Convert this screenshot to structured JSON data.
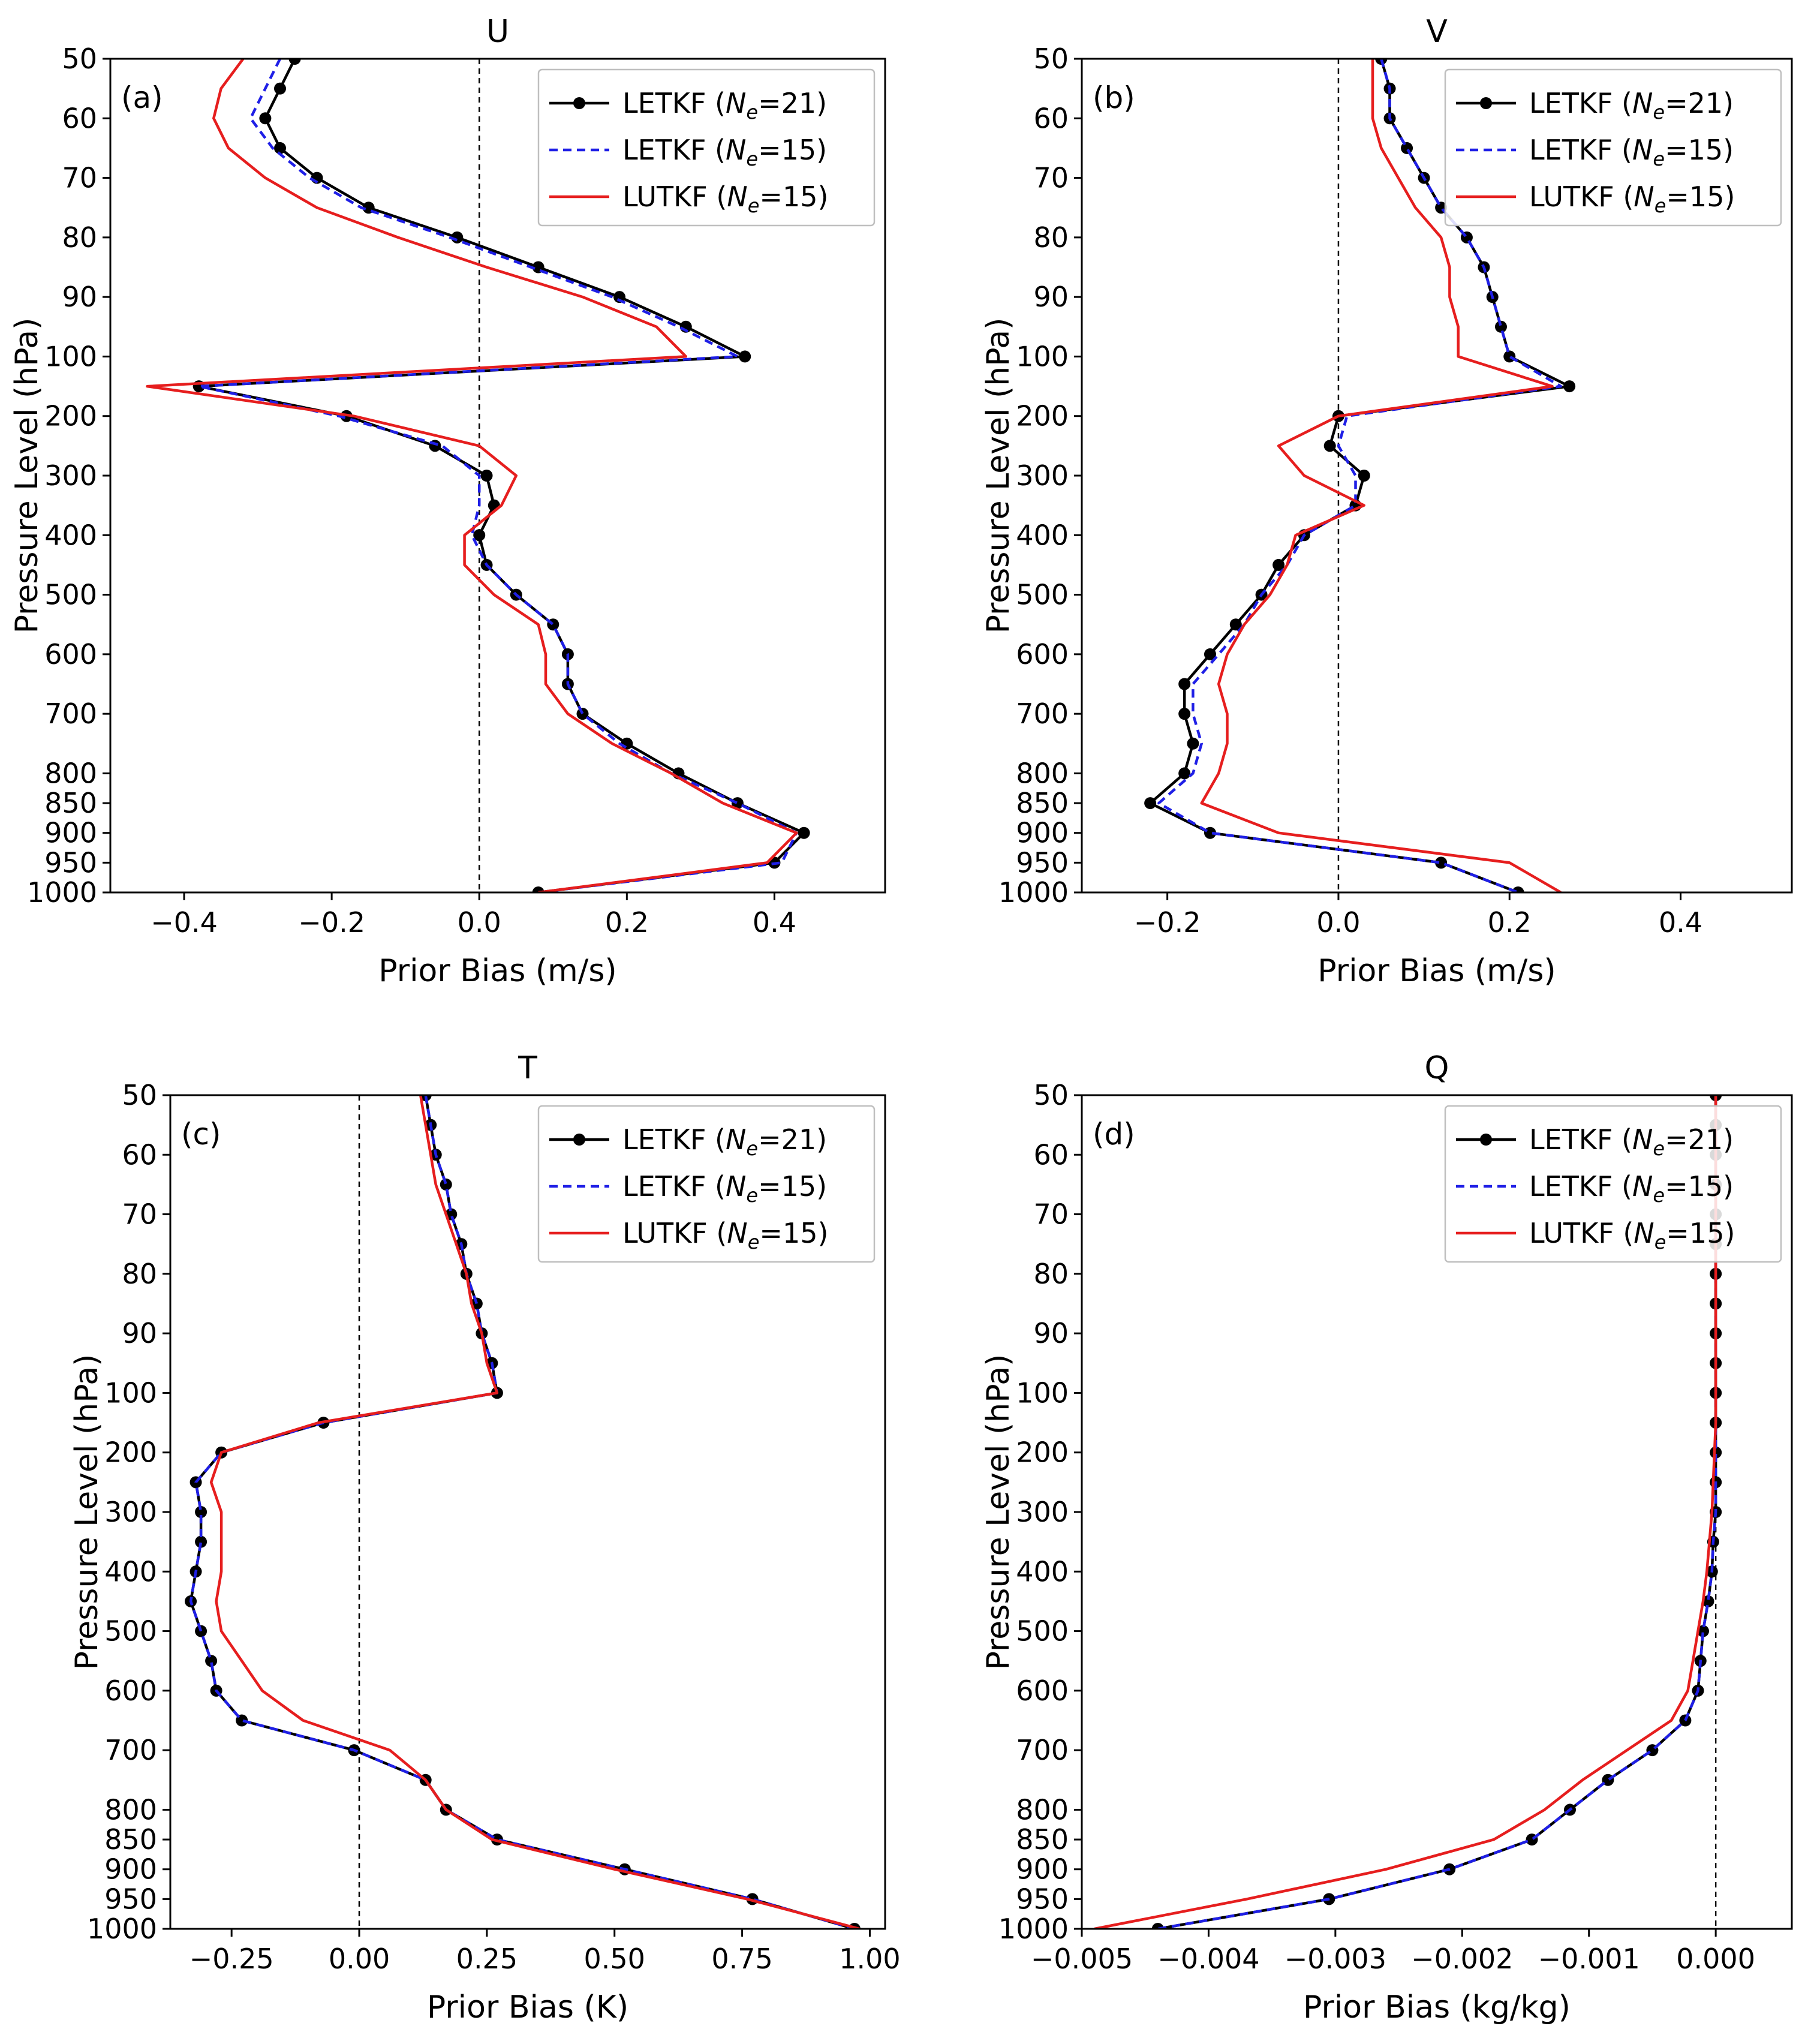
{
  "colors": {
    "letkf21": "#000000",
    "letkf15": "#1f1fe6",
    "lutkf15": "#e61e1e"
  },
  "legend_labels": [
    {
      "prefix": "LETKF (",
      "var": "N",
      "sub": "e",
      "suffix": "=21)",
      "style": "solid-black-with-dots"
    },
    {
      "prefix": "LETKF (",
      "var": "N",
      "sub": "e",
      "suffix": "=15)",
      "style": "dashed-blue"
    },
    {
      "prefix": "LUTKF (",
      "var": "N",
      "sub": "e",
      "suffix": "=15)",
      "style": "solid-red"
    }
  ],
  "chart_data": [
    {
      "type": "line",
      "title": "U",
      "panel_label": "(a)",
      "xlabel": "Prior Bias (m/s)",
      "ylabel": "Pressure Level (hPa)",
      "xlim": [
        -0.5,
        0.55
      ],
      "xticks": [
        -0.4,
        -0.2,
        0.0,
        0.2,
        0.4
      ],
      "xtick_labels": [
        "−0.4",
        "−0.2",
        "0.0",
        "0.2",
        "0.4"
      ],
      "zero_line": 0,
      "legend_position": "top-right",
      "pressure_levels": [
        50,
        55,
        60,
        65,
        70,
        75,
        80,
        85,
        90,
        95,
        100,
        150,
        200,
        250,
        300,
        350,
        400,
        450,
        500,
        550,
        600,
        650,
        700,
        750,
        800,
        850,
        900,
        950,
        1000
      ],
      "ytick_labels": [
        "50",
        "60",
        "70",
        "80",
        "90",
        "100",
        "200",
        "300",
        "400",
        "500",
        "600",
        "700",
        "800",
        "850",
        "900",
        "950",
        "1000"
      ],
      "series": [
        {
          "name": "LETKF (Ne=21)",
          "values": [
            -0.25,
            -0.27,
            -0.29,
            -0.27,
            -0.22,
            -0.15,
            -0.03,
            0.08,
            0.19,
            0.28,
            0.36,
            -0.38,
            -0.18,
            -0.06,
            0.01,
            0.02,
            0.0,
            0.01,
            0.05,
            0.1,
            0.12,
            0.12,
            0.14,
            0.2,
            0.27,
            0.35,
            0.44,
            0.4,
            0.08
          ]
        },
        {
          "name": "LETKF (Ne=15)",
          "values": [
            -0.27,
            -0.29,
            -0.31,
            -0.28,
            -0.23,
            -0.16,
            -0.04,
            0.07,
            0.18,
            0.27,
            0.35,
            -0.38,
            -0.19,
            -0.05,
            0.0,
            0.0,
            -0.01,
            0.01,
            0.05,
            0.1,
            0.12,
            0.12,
            0.14,
            0.19,
            0.26,
            0.35,
            0.43,
            0.41,
            0.08
          ]
        },
        {
          "name": "LUTKF (Ne=15)",
          "values": [
            -0.32,
            -0.35,
            -0.36,
            -0.34,
            -0.29,
            -0.22,
            -0.11,
            0.01,
            0.14,
            0.24,
            0.28,
            -0.45,
            -0.17,
            0.0,
            0.05,
            0.03,
            -0.02,
            -0.02,
            0.02,
            0.08,
            0.09,
            0.09,
            0.12,
            0.18,
            0.26,
            0.33,
            0.43,
            0.39,
            0.08
          ]
        }
      ]
    },
    {
      "type": "line",
      "title": "V",
      "panel_label": "(b)",
      "xlabel": "Prior Bias (m/s)",
      "ylabel": "Pressure Level (hPa)",
      "xlim": [
        -0.3,
        0.53
      ],
      "xticks": [
        -0.2,
        0.0,
        0.2,
        0.4
      ],
      "xtick_labels": [
        "−0.2",
        "0.0",
        "0.2",
        "0.4"
      ],
      "zero_line": 0,
      "legend_position": "top-right",
      "pressure_levels": [
        50,
        55,
        60,
        65,
        70,
        75,
        80,
        85,
        90,
        95,
        100,
        150,
        200,
        250,
        300,
        350,
        400,
        450,
        500,
        550,
        600,
        650,
        700,
        750,
        800,
        850,
        900,
        950,
        1000
      ],
      "ytick_labels": [
        "50",
        "60",
        "70",
        "80",
        "90",
        "100",
        "200",
        "300",
        "400",
        "500",
        "600",
        "700",
        "800",
        "850",
        "900",
        "950",
        "1000"
      ],
      "series": [
        {
          "name": "LETKF (Ne=21)",
          "values": [
            0.05,
            0.06,
            0.06,
            0.08,
            0.1,
            0.12,
            0.15,
            0.17,
            0.18,
            0.19,
            0.2,
            0.27,
            0.0,
            -0.01,
            0.03,
            0.02,
            -0.04,
            -0.07,
            -0.09,
            -0.12,
            -0.15,
            -0.18,
            -0.18,
            -0.17,
            -0.18,
            -0.22,
            -0.15,
            0.12,
            0.21
          ]
        },
        {
          "name": "LETKF (Ne=15)",
          "values": [
            0.05,
            0.06,
            0.06,
            0.08,
            0.1,
            0.12,
            0.15,
            0.17,
            0.18,
            0.19,
            0.2,
            0.26,
            0.01,
            0.0,
            0.02,
            0.02,
            -0.04,
            -0.06,
            -0.09,
            -0.11,
            -0.14,
            -0.17,
            -0.17,
            -0.16,
            -0.17,
            -0.21,
            -0.15,
            0.12,
            0.21
          ]
        },
        {
          "name": "LUTKF (Ne=15)",
          "values": [
            0.04,
            0.04,
            0.04,
            0.05,
            0.07,
            0.09,
            0.12,
            0.13,
            0.13,
            0.14,
            0.14,
            0.25,
            0.0,
            -0.07,
            -0.04,
            0.03,
            -0.05,
            -0.06,
            -0.08,
            -0.11,
            -0.13,
            -0.14,
            -0.13,
            -0.13,
            -0.14,
            -0.16,
            -0.07,
            0.2,
            0.26
          ]
        }
      ]
    },
    {
      "type": "line",
      "title": "T",
      "panel_label": "(c)",
      "xlabel": "Prior Bias (K)",
      "ylabel": "Pressure Level (hPa)",
      "xlim": [
        -0.37,
        1.03
      ],
      "xticks": [
        -0.25,
        0.0,
        0.25,
        0.5,
        0.75,
        1.0
      ],
      "xtick_labels": [
        "−0.25",
        "0.00",
        "0.25",
        "0.50",
        "0.75",
        "1.00"
      ],
      "zero_line": 0,
      "legend_position": "top-right",
      "pressure_levels": [
        50,
        55,
        60,
        65,
        70,
        75,
        80,
        85,
        90,
        95,
        100,
        150,
        200,
        250,
        300,
        350,
        400,
        450,
        500,
        550,
        600,
        650,
        700,
        750,
        800,
        850,
        900,
        950,
        1000
      ],
      "ytick_labels": [
        "50",
        "60",
        "70",
        "80",
        "90",
        "100",
        "200",
        "300",
        "400",
        "500",
        "600",
        "700",
        "800",
        "850",
        "900",
        "950",
        "1000"
      ],
      "series": [
        {
          "name": "LETKF (Ne=21)",
          "values": [
            0.13,
            0.14,
            0.15,
            0.17,
            0.18,
            0.2,
            0.21,
            0.23,
            0.24,
            0.26,
            0.27,
            -0.07,
            -0.27,
            -0.32,
            -0.31,
            -0.31,
            -0.32,
            -0.33,
            -0.31,
            -0.29,
            -0.28,
            -0.23,
            -0.01,
            0.13,
            0.17,
            0.27,
            0.52,
            0.77,
            0.97
          ]
        },
        {
          "name": "LETKF (Ne=15)",
          "values": [
            0.13,
            0.14,
            0.15,
            0.17,
            0.18,
            0.2,
            0.21,
            0.23,
            0.24,
            0.26,
            0.27,
            -0.07,
            -0.27,
            -0.32,
            -0.31,
            -0.31,
            -0.32,
            -0.33,
            -0.31,
            -0.29,
            -0.28,
            -0.23,
            -0.01,
            0.13,
            0.17,
            0.27,
            0.52,
            0.77,
            0.97
          ]
        },
        {
          "name": "LUTKF (Ne=15)",
          "values": [
            0.12,
            0.13,
            0.14,
            0.15,
            0.17,
            0.19,
            0.21,
            0.22,
            0.24,
            0.25,
            0.27,
            -0.08,
            -0.27,
            -0.29,
            -0.27,
            -0.27,
            -0.27,
            -0.28,
            -0.27,
            -0.23,
            -0.19,
            -0.11,
            0.06,
            0.13,
            0.17,
            0.26,
            0.5,
            0.76,
            0.98
          ]
        }
      ]
    },
    {
      "type": "line",
      "title": "Q",
      "panel_label": "(d)",
      "xlabel": "Prior Bias (kg/kg)",
      "ylabel": "Pressure Level (hPa)",
      "xlim": [
        -0.005,
        0.0006
      ],
      "xticks": [
        -0.005,
        -0.004,
        -0.003,
        -0.002,
        -0.001,
        0.0
      ],
      "xtick_labels": [
        "−0.005",
        "−0.004",
        "−0.003",
        "−0.002",
        "−0.001",
        "0.000"
      ],
      "zero_line": 0,
      "legend_position": "top-right",
      "pressure_levels": [
        50,
        55,
        60,
        65,
        70,
        75,
        80,
        85,
        90,
        95,
        100,
        150,
        200,
        250,
        300,
        350,
        400,
        450,
        500,
        550,
        600,
        650,
        700,
        750,
        800,
        850,
        900,
        950,
        1000
      ],
      "ytick_labels": [
        "50",
        "60",
        "70",
        "80",
        "90",
        "100",
        "200",
        "300",
        "400",
        "500",
        "600",
        "700",
        "800",
        "850",
        "900",
        "950",
        "1000"
      ],
      "series": [
        {
          "name": "LETKF (Ne=21)",
          "values": [
            0.0,
            0.0,
            0.0,
            0.0,
            0.0,
            0.0,
            0.0,
            0.0,
            0.0,
            0.0,
            0.0,
            0.0,
            0.0,
            0.0,
            0.0,
            -2e-05,
            -3e-05,
            -6e-05,
            -0.0001,
            -0.00012,
            -0.00014,
            -0.00024,
            -0.0005,
            -0.00085,
            -0.00115,
            -0.00145,
            -0.0021,
            -0.00305,
            -0.0044
          ]
        },
        {
          "name": "LETKF (Ne=15)",
          "values": [
            0.0,
            0.0,
            0.0,
            0.0,
            0.0,
            0.0,
            0.0,
            0.0,
            0.0,
            0.0,
            0.0,
            0.0,
            0.0,
            0.0,
            0.0,
            -2e-05,
            -3e-05,
            -6e-05,
            -0.0001,
            -0.00012,
            -0.00014,
            -0.00024,
            -0.0005,
            -0.00085,
            -0.00115,
            -0.00145,
            -0.0021,
            -0.00305,
            -0.0044
          ]
        },
        {
          "name": "LUTKF (Ne=15)",
          "values": [
            0.0,
            0.0,
            0.0,
            0.0,
            0.0,
            0.0,
            0.0,
            0.0,
            0.0,
            0.0,
            0.0,
            0.0,
            -1e-05,
            -2e-05,
            -3e-05,
            -5e-05,
            -7e-05,
            -0.0001,
            -0.00014,
            -0.00018,
            -0.00022,
            -0.00035,
            -0.0007,
            -0.00105,
            -0.00135,
            -0.00175,
            -0.0026,
            -0.0037,
            -0.0049
          ]
        }
      ]
    }
  ]
}
